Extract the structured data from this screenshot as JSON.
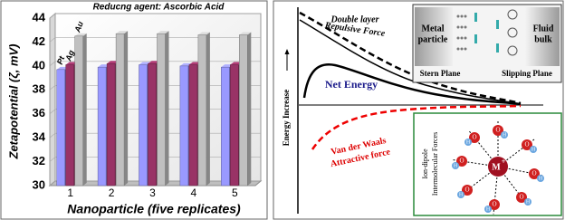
{
  "chart_data": {
    "type": "bar3d",
    "title": "Reducng agent: Ascorbic Acid",
    "xlabel": "Nanoparticle (five replicates)",
    "ylabel": "Zetapotential (ζ, mV)",
    "categories": [
      "1",
      "2",
      "3",
      "4",
      "5"
    ],
    "series": [
      {
        "name": "Pt",
        "color": "#9999ff",
        "values": [
          39.7,
          39.9,
          40.1,
          40.0,
          39.9
        ]
      },
      {
        "name": "Ag",
        "color": "#993366",
        "values": [
          40.1,
          40.2,
          40.2,
          40.1,
          40.1
        ]
      },
      {
        "name": "Au",
        "color": "#c0c0c0",
        "values": [
          42.5,
          42.7,
          42.7,
          42.6,
          42.6
        ]
      }
    ],
    "ylim": [
      30,
      44
    ],
    "yticks": [
      30,
      32,
      34,
      36,
      38,
      40,
      42,
      44
    ],
    "grid": true
  },
  "diagram": {
    "y_axis_label": "Energy Increase",
    "double_layer": [
      "Double layer",
      "Repulsive Force"
    ],
    "net_energy": "Net Energy",
    "van_der_waals": [
      "Van der Waals",
      "Attractive force"
    ],
    "metal_particle": [
      "Metal",
      "particle"
    ],
    "fluid_bulk": [
      "Fluid",
      "bulk"
    ],
    "stern_plane": "Stern Plane",
    "slipping_plane": "Slipping Plane",
    "ion_dipole": [
      "Ion-dipole",
      "Intermolecular Forces"
    ],
    "metal_ion": "M",
    "charge": "+",
    "oxygen": "O",
    "hydrogen": "H"
  }
}
